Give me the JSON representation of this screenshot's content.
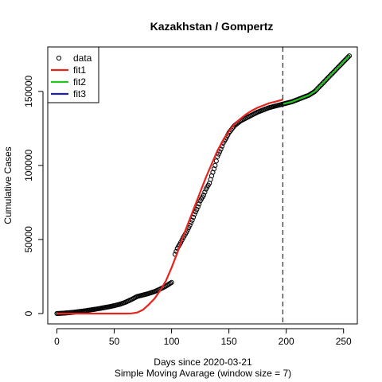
{
  "chart_data": {
    "type": "line",
    "title": "Kazakhstan / Gompertz",
    "xlabel": "Days since 2020-03-21",
    "subtitle": "Simple Moving Avarage (window size = 7)",
    "ylabel": "Cumulative Cases",
    "xlim": [
      -8,
      262
    ],
    "ylim": [
      -7000,
      180000
    ],
    "xticks": [
      0,
      50,
      100,
      150,
      200,
      250
    ],
    "yticks": [
      0,
      50000,
      100000,
      150000
    ],
    "ytick_labels": [
      "0",
      "50000",
      "100000",
      "150000"
    ],
    "vline_x": 197,
    "vline_style": "dashed",
    "legend_position": "top-left",
    "series": [
      {
        "name": "data",
        "style": "points",
        "color": "#000000",
        "points": [
          [
            0,
            0
          ],
          [
            5,
            200
          ],
          [
            10,
            500
          ],
          [
            15,
            900
          ],
          [
            20,
            1400
          ],
          [
            25,
            1900
          ],
          [
            30,
            2500
          ],
          [
            35,
            3100
          ],
          [
            40,
            3800
          ],
          [
            45,
            4500
          ],
          [
            50,
            5300
          ],
          [
            55,
            6300
          ],
          [
            60,
            7700
          ],
          [
            65,
            9500
          ],
          [
            70,
            11500
          ],
          [
            75,
            12500
          ],
          [
            80,
            13500
          ],
          [
            85,
            14800
          ],
          [
            90,
            16500
          ],
          [
            95,
            18500
          ],
          [
            100,
            21000
          ],
          [
            103,
            40000
          ],
          [
            105,
            44000
          ],
          [
            108,
            48000
          ],
          [
            110,
            51000
          ],
          [
            113,
            55000
          ],
          [
            115,
            58000
          ],
          [
            118,
            63000
          ],
          [
            120,
            67000
          ],
          [
            123,
            72000
          ],
          [
            125,
            76000
          ],
          [
            128,
            80000
          ],
          [
            130,
            84000
          ],
          [
            133,
            88000
          ],
          [
            135,
            93000
          ],
          [
            138,
            100000
          ],
          [
            140,
            106000
          ],
          [
            143,
            111000
          ],
          [
            145,
            115000
          ],
          [
            148,
            119000
          ],
          [
            150,
            122000
          ],
          [
            153,
            125000
          ],
          [
            155,
            127000
          ],
          [
            160,
            130000
          ],
          [
            165,
            132000
          ],
          [
            170,
            134000
          ],
          [
            175,
            136000
          ],
          [
            180,
            137500
          ],
          [
            185,
            139000
          ],
          [
            190,
            140000
          ],
          [
            195,
            141000
          ],
          [
            200,
            142000
          ],
          [
            205,
            143000
          ],
          [
            210,
            144500
          ],
          [
            215,
            146000
          ],
          [
            220,
            147500
          ],
          [
            225,
            150000
          ],
          [
            230,
            154000
          ],
          [
            235,
            158000
          ],
          [
            240,
            162000
          ],
          [
            245,
            166000
          ],
          [
            250,
            170000
          ],
          [
            255,
            174000
          ]
        ]
      },
      {
        "name": "fit1",
        "style": "line",
        "color": "#e8231f",
        "points": [
          [
            0,
            0
          ],
          [
            60,
            0
          ],
          [
            65,
            100
          ],
          [
            70,
            700
          ],
          [
            75,
            2500
          ],
          [
            80,
            6000
          ],
          [
            85,
            10000
          ],
          [
            90,
            15500
          ],
          [
            95,
            22000
          ],
          [
            100,
            31000
          ],
          [
            105,
            41000
          ],
          [
            110,
            52000
          ],
          [
            115,
            62000
          ],
          [
            120,
            72000
          ],
          [
            125,
            82000
          ],
          [
            130,
            92000
          ],
          [
            135,
            101000
          ],
          [
            140,
            110000
          ],
          [
            145,
            117000
          ],
          [
            150,
            123000
          ],
          [
            155,
            128000
          ],
          [
            160,
            131500
          ],
          [
            165,
            134500
          ],
          [
            170,
            137000
          ],
          [
            175,
            139000
          ],
          [
            180,
            140500
          ],
          [
            185,
            142000
          ],
          [
            190,
            143000
          ],
          [
            195,
            144000
          ],
          [
            197,
            144500
          ]
        ]
      },
      {
        "name": "fit2",
        "style": "line",
        "color": "#22c322",
        "points": [
          [
            197,
            141500
          ],
          [
            200,
            142000
          ],
          [
            205,
            143000
          ],
          [
            210,
            144500
          ],
          [
            215,
            146000
          ],
          [
            220,
            147500
          ],
          [
            225,
            150000
          ],
          [
            230,
            154000
          ],
          [
            235,
            158000
          ],
          [
            240,
            162000
          ],
          [
            245,
            166000
          ],
          [
            250,
            170000
          ],
          [
            255,
            174000
          ]
        ]
      },
      {
        "name": "fit3",
        "style": "line",
        "color": "#1f1fb4",
        "points": []
      }
    ]
  }
}
